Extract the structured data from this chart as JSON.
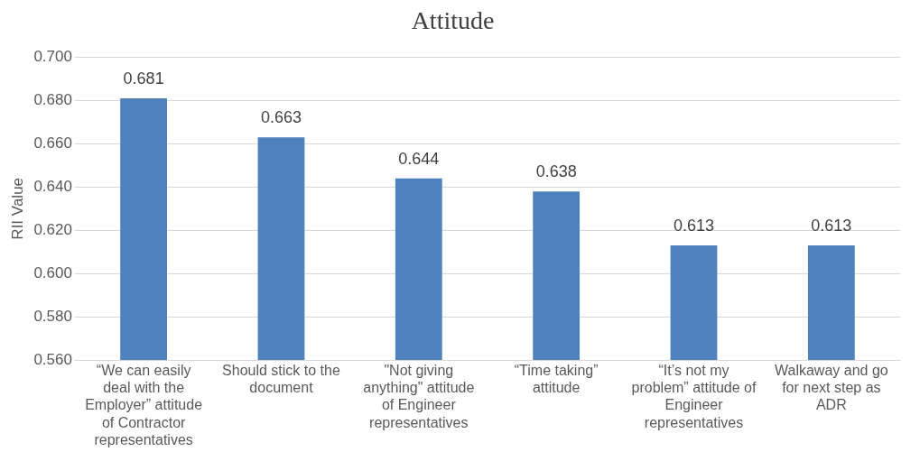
{
  "chart_data": {
    "type": "bar",
    "title": "Attitude",
    "ylabel": "RII Value",
    "categories": [
      "“We can easily deal with the Employer” attitude of Contractor representatives",
      "Should stick to the document",
      "\"Not giving anything\" attitude of Engineer representatives",
      "“Time taking” attitude",
      "“It’s not my problem” attitude of Engineer representatives",
      "Walkaway and go for next step as ADR"
    ],
    "values": [
      0.681,
      0.663,
      0.644,
      0.638,
      0.613,
      0.613
    ],
    "color": "#4f81bd",
    "ylim": [
      0.56,
      0.7
    ],
    "yticks": [
      {
        "value": 0.56,
        "label": "0.560"
      },
      {
        "value": 0.58,
        "label": "0.580"
      },
      {
        "value": 0.6,
        "label": "0.600"
      },
      {
        "value": 0.62,
        "label": "0.620"
      },
      {
        "value": 0.64,
        "label": "0.640"
      },
      {
        "value": 0.66,
        "label": "0.660"
      },
      {
        "value": 0.68,
        "label": "0.680"
      },
      {
        "value": 0.7,
        "label": "0.700"
      }
    ],
    "grid": "y",
    "data_labels": true,
    "legend": false
  }
}
